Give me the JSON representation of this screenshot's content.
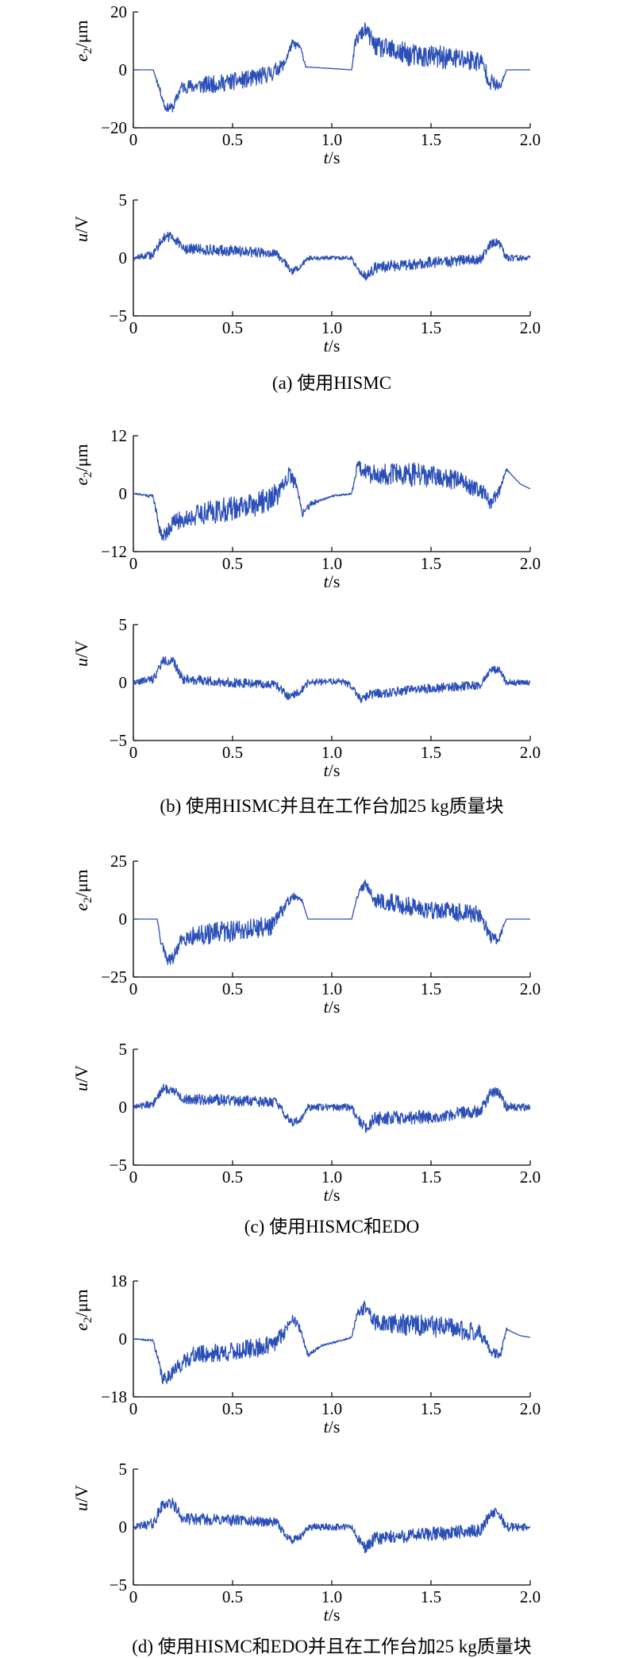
{
  "chart_data": [
    {
      "type": "line",
      "panel": "a",
      "subplot": "top",
      "ylabel": "e2/μm",
      "xlabel": "t/s",
      "xlim": [
        0,
        2.0
      ],
      "ylim": [
        -20,
        20
      ],
      "yticks": [
        "20",
        "0",
        "−20"
      ],
      "xticks": [
        "0",
        "0.5",
        "1.0",
        "1.5",
        "2.0"
      ],
      "color": "#2b4fb8",
      "profile": [
        [
          0,
          0
        ],
        [
          0.1,
          0
        ],
        [
          0.13,
          -6
        ],
        [
          0.16,
          -13
        ],
        [
          0.2,
          -13
        ],
        [
          0.24,
          -6
        ],
        [
          0.4,
          -5
        ],
        [
          0.6,
          -3
        ],
        [
          0.7,
          -1
        ],
        [
          0.76,
          2
        ],
        [
          0.8,
          9
        ],
        [
          0.84,
          8
        ],
        [
          0.87,
          1
        ],
        [
          1.1,
          0
        ],
        [
          1.12,
          10
        ],
        [
          1.17,
          14
        ],
        [
          1.22,
          8
        ],
        [
          1.4,
          5
        ],
        [
          1.6,
          4
        ],
        [
          1.75,
          3
        ],
        [
          1.8,
          -4
        ],
        [
          1.85,
          -6
        ],
        [
          1.88,
          0
        ],
        [
          2.0,
          0
        ]
      ],
      "noise": [
        [
          0,
          0
        ],
        [
          0.1,
          0
        ],
        [
          0.12,
          1
        ],
        [
          0.24,
          2
        ],
        [
          0.35,
          3
        ],
        [
          0.5,
          3
        ],
        [
          0.7,
          3
        ],
        [
          0.75,
          2
        ],
        [
          0.85,
          1
        ],
        [
          0.88,
          0
        ],
        [
          1.1,
          0
        ],
        [
          1.12,
          2
        ],
        [
          1.2,
          3
        ],
        [
          1.3,
          4
        ],
        [
          1.7,
          4
        ],
        [
          1.8,
          3
        ],
        [
          1.86,
          1
        ],
        [
          1.88,
          0
        ],
        [
          2.0,
          0
        ]
      ],
      "seed": 11
    },
    {
      "type": "line",
      "panel": "a",
      "subplot": "bottom",
      "ylabel": "u/V",
      "xlabel": "t/s",
      "xlim": [
        0,
        2.0
      ],
      "ylim": [
        -5,
        5
      ],
      "yticks": [
        "5",
        "0",
        "−5"
      ],
      "xticks": [
        "0",
        "0.5",
        "1.0",
        "1.5",
        "2.0"
      ],
      "color": "#2b4fb8",
      "profile": [
        [
          0,
          0
        ],
        [
          0.1,
          0.3
        ],
        [
          0.15,
          1.8
        ],
        [
          0.2,
          1.8
        ],
        [
          0.25,
          0.8
        ],
        [
          0.5,
          0.6
        ],
        [
          0.72,
          0.4
        ],
        [
          0.76,
          -0.3
        ],
        [
          0.8,
          -1.2
        ],
        [
          0.85,
          -0.6
        ],
        [
          0.88,
          0
        ],
        [
          1.1,
          0
        ],
        [
          1.13,
          -1
        ],
        [
          1.17,
          -1.6
        ],
        [
          1.22,
          -0.8
        ],
        [
          1.5,
          -0.4
        ],
        [
          1.75,
          -0.1
        ],
        [
          1.8,
          1.2
        ],
        [
          1.84,
          1.4
        ],
        [
          1.88,
          0
        ],
        [
          2.0,
          0
        ]
      ],
      "noise": [
        [
          0,
          0.2
        ],
        [
          0.1,
          0.4
        ],
        [
          0.5,
          0.5
        ],
        [
          0.9,
          0.2
        ],
        [
          1.1,
          0.15
        ],
        [
          1.2,
          0.5
        ],
        [
          1.6,
          0.5
        ],
        [
          1.9,
          0.3
        ],
        [
          2.0,
          0.2
        ]
      ],
      "seed": 12
    },
    {
      "type": "line",
      "panel": "b",
      "subplot": "top",
      "ylabel": "e2/μm",
      "xlabel": "t/s",
      "xlim": [
        0,
        2.0
      ],
      "ylim": [
        -12,
        12
      ],
      "yticks": [
        "12",
        "0",
        "−12"
      ],
      "xticks": [
        "0",
        "0.5",
        "1.0",
        "1.5",
        "2.0"
      ],
      "color": "#2b4fb8",
      "profile": [
        [
          0,
          0
        ],
        [
          0.1,
          -0.5
        ],
        [
          0.13,
          -7
        ],
        [
          0.15,
          -9
        ],
        [
          0.2,
          -6
        ],
        [
          0.35,
          -4
        ],
        [
          0.6,
          -2.5
        ],
        [
          0.74,
          0
        ],
        [
          0.78,
          4
        ],
        [
          0.82,
          2
        ],
        [
          0.85,
          -4
        ],
        [
          0.9,
          -2
        ],
        [
          1.0,
          -0.5
        ],
        [
          1.1,
          0
        ],
        [
          1.13,
          6
        ],
        [
          1.2,
          4
        ],
        [
          1.4,
          4
        ],
        [
          1.6,
          3
        ],
        [
          1.75,
          1
        ],
        [
          1.8,
          -2
        ],
        [
          1.85,
          1
        ],
        [
          1.88,
          5
        ],
        [
          1.95,
          2
        ],
        [
          2.0,
          1
        ]
      ],
      "noise": [
        [
          0,
          0
        ],
        [
          0.1,
          0.5
        ],
        [
          0.15,
          1.5
        ],
        [
          0.4,
          2.5
        ],
        [
          0.7,
          2.5
        ],
        [
          0.85,
          1
        ],
        [
          0.95,
          0.2
        ],
        [
          1.1,
          0.2
        ],
        [
          1.15,
          2
        ],
        [
          1.4,
          2.5
        ],
        [
          1.7,
          2
        ],
        [
          1.85,
          1
        ],
        [
          1.9,
          0
        ],
        [
          2.0,
          0
        ]
      ],
      "seed": 21
    },
    {
      "type": "line",
      "panel": "b",
      "subplot": "bottom",
      "ylabel": "u/V",
      "xlabel": "t/s",
      "xlim": [
        0,
        2.0
      ],
      "ylim": [
        -5,
        5
      ],
      "yticks": [
        "5",
        "0",
        "−5"
      ],
      "xticks": [
        "0",
        "0.5",
        "1.0",
        "1.5",
        "2.0"
      ],
      "color": "#2b4fb8",
      "profile": [
        [
          0,
          0
        ],
        [
          0.1,
          0.3
        ],
        [
          0.15,
          1.9
        ],
        [
          0.2,
          1.8
        ],
        [
          0.25,
          0.3
        ],
        [
          0.5,
          0
        ],
        [
          0.72,
          -0.2
        ],
        [
          0.78,
          -1.2
        ],
        [
          0.84,
          -0.8
        ],
        [
          0.88,
          0
        ],
        [
          1.05,
          0.1
        ],
        [
          1.1,
          -0.3
        ],
        [
          1.15,
          -1.5
        ],
        [
          1.2,
          -1
        ],
        [
          1.5,
          -0.5
        ],
        [
          1.75,
          -0.2
        ],
        [
          1.8,
          1.2
        ],
        [
          1.85,
          1
        ],
        [
          1.88,
          0
        ],
        [
          2.0,
          0
        ]
      ],
      "noise": [
        [
          0,
          0.2
        ],
        [
          0.1,
          0.4
        ],
        [
          0.5,
          0.4
        ],
        [
          0.9,
          0.3
        ],
        [
          1.1,
          0.3
        ],
        [
          1.2,
          0.4
        ],
        [
          1.6,
          0.4
        ],
        [
          1.9,
          0.3
        ],
        [
          2.0,
          0.2
        ]
      ],
      "seed": 22
    },
    {
      "type": "line",
      "panel": "c",
      "subplot": "top",
      "ylabel": "e2/μm",
      "xlabel": "t/s",
      "xlim": [
        0,
        2.0
      ],
      "ylim": [
        -25,
        25
      ],
      "yticks": [
        "25",
        "0",
        "−25"
      ],
      "xticks": [
        "0",
        "0.5",
        "1.0",
        "1.5",
        "2.0"
      ],
      "color": "#2b4fb8",
      "profile": [
        [
          0,
          0
        ],
        [
          0.12,
          0
        ],
        [
          0.14,
          -10
        ],
        [
          0.17,
          -18
        ],
        [
          0.2,
          -17
        ],
        [
          0.25,
          -8
        ],
        [
          0.5,
          -5
        ],
        [
          0.7,
          -3
        ],
        [
          0.76,
          5
        ],
        [
          0.8,
          10
        ],
        [
          0.85,
          8
        ],
        [
          0.88,
          0
        ],
        [
          1.1,
          0
        ],
        [
          1.13,
          10
        ],
        [
          1.17,
          16
        ],
        [
          1.22,
          8
        ],
        [
          1.5,
          4
        ],
        [
          1.75,
          2
        ],
        [
          1.8,
          -8
        ],
        [
          1.84,
          -9
        ],
        [
          1.88,
          0
        ],
        [
          2.0,
          0
        ]
      ],
      "noise": [
        [
          0,
          0
        ],
        [
          0.12,
          0
        ],
        [
          0.14,
          2
        ],
        [
          0.3,
          4
        ],
        [
          0.5,
          5
        ],
        [
          0.7,
          4
        ],
        [
          0.8,
          2
        ],
        [
          0.88,
          0
        ],
        [
          1.1,
          0
        ],
        [
          1.15,
          2
        ],
        [
          1.3,
          4
        ],
        [
          1.7,
          4
        ],
        [
          1.85,
          2
        ],
        [
          1.88,
          0
        ],
        [
          2.0,
          0
        ]
      ],
      "seed": 31
    },
    {
      "type": "line",
      "panel": "c",
      "subplot": "bottom",
      "ylabel": "u/V",
      "xlabel": "t/s",
      "xlim": [
        0,
        2.0
      ],
      "ylim": [
        -5,
        5
      ],
      "yticks": [
        "5",
        "0",
        "−5"
      ],
      "xticks": [
        "0",
        "0.5",
        "1.0",
        "1.5",
        "2.0"
      ],
      "color": "#2b4fb8",
      "profile": [
        [
          0,
          0
        ],
        [
          0.1,
          0.3
        ],
        [
          0.15,
          1.6
        ],
        [
          0.2,
          1.5
        ],
        [
          0.25,
          0.7
        ],
        [
          0.5,
          0.6
        ],
        [
          0.72,
          0.4
        ],
        [
          0.76,
          -0.5
        ],
        [
          0.8,
          -1.4
        ],
        [
          0.85,
          -1
        ],
        [
          0.88,
          0
        ],
        [
          1.1,
          0
        ],
        [
          1.13,
          -1
        ],
        [
          1.17,
          -1.8
        ],
        [
          1.22,
          -1
        ],
        [
          1.5,
          -0.8
        ],
        [
          1.75,
          -0.3
        ],
        [
          1.8,
          1.2
        ],
        [
          1.84,
          1.3
        ],
        [
          1.88,
          0
        ],
        [
          2.0,
          0
        ]
      ],
      "noise": [
        [
          0,
          0.2
        ],
        [
          0.1,
          0.4
        ],
        [
          0.5,
          0.5
        ],
        [
          0.9,
          0.3
        ],
        [
          1.1,
          0.3
        ],
        [
          1.2,
          0.6
        ],
        [
          1.6,
          0.6
        ],
        [
          1.9,
          0.4
        ],
        [
          2.0,
          0.3
        ]
      ],
      "seed": 32
    },
    {
      "type": "line",
      "panel": "d",
      "subplot": "top",
      "ylabel": "e2/μm",
      "xlabel": "t/s",
      "xlim": [
        0,
        2.0
      ],
      "ylim": [
        -18,
        18
      ],
      "yticks": [
        "18",
        "0",
        "−18"
      ],
      "xticks": [
        "0",
        "0.5",
        "1.0",
        "1.5",
        "2.0"
      ],
      "color": "#2b4fb8",
      "profile": [
        [
          0,
          0
        ],
        [
          0.1,
          -0.5
        ],
        [
          0.13,
          -8
        ],
        [
          0.15,
          -13
        ],
        [
          0.2,
          -10
        ],
        [
          0.3,
          -5
        ],
        [
          0.5,
          -4
        ],
        [
          0.7,
          -2
        ],
        [
          0.76,
          2
        ],
        [
          0.8,
          7
        ],
        [
          0.84,
          3
        ],
        [
          0.88,
          -5
        ],
        [
          0.95,
          -2
        ],
        [
          1.05,
          -0.5
        ],
        [
          1.1,
          0.5
        ],
        [
          1.13,
          8
        ],
        [
          1.17,
          10
        ],
        [
          1.22,
          5
        ],
        [
          1.5,
          4
        ],
        [
          1.75,
          2
        ],
        [
          1.8,
          -4
        ],
        [
          1.85,
          -5
        ],
        [
          1.88,
          3
        ],
        [
          1.95,
          1
        ],
        [
          2.0,
          0.5
        ]
      ],
      "noise": [
        [
          0,
          0
        ],
        [
          0.1,
          0.5
        ],
        [
          0.15,
          2
        ],
        [
          0.4,
          3
        ],
        [
          0.7,
          3
        ],
        [
          0.85,
          1
        ],
        [
          0.95,
          0.3
        ],
        [
          1.1,
          0.3
        ],
        [
          1.15,
          2
        ],
        [
          1.4,
          3.5
        ],
        [
          1.7,
          3
        ],
        [
          1.86,
          1
        ],
        [
          1.9,
          0
        ],
        [
          2.0,
          0
        ]
      ],
      "seed": 41
    },
    {
      "type": "line",
      "panel": "d",
      "subplot": "bottom",
      "ylabel": "u/V",
      "xlabel": "t/s",
      "xlim": [
        0,
        2.0
      ],
      "ylim": [
        -5,
        5
      ],
      "yticks": [
        "5",
        "0",
        "−5"
      ],
      "xticks": [
        "0",
        "0.5",
        "1.0",
        "1.5",
        "2.0"
      ],
      "color": "#2b4fb8",
      "profile": [
        [
          0,
          0
        ],
        [
          0.1,
          0.3
        ],
        [
          0.15,
          2
        ],
        [
          0.2,
          2
        ],
        [
          0.25,
          0.7
        ],
        [
          0.5,
          0.6
        ],
        [
          0.72,
          0.4
        ],
        [
          0.76,
          -0.5
        ],
        [
          0.8,
          -1.2
        ],
        [
          0.85,
          -0.8
        ],
        [
          0.88,
          0
        ],
        [
          1.1,
          0
        ],
        [
          1.13,
          -1
        ],
        [
          1.17,
          -1.8
        ],
        [
          1.22,
          -1
        ],
        [
          1.5,
          -0.6
        ],
        [
          1.75,
          -0.3
        ],
        [
          1.8,
          1.2
        ],
        [
          1.84,
          1.2
        ],
        [
          1.88,
          0
        ],
        [
          2.0,
          0
        ]
      ],
      "noise": [
        [
          0,
          0.2
        ],
        [
          0.1,
          0.5
        ],
        [
          0.5,
          0.5
        ],
        [
          0.9,
          0.3
        ],
        [
          1.1,
          0.3
        ],
        [
          1.2,
          0.6
        ],
        [
          1.6,
          0.6
        ],
        [
          1.9,
          0.4
        ],
        [
          2.0,
          0.3
        ]
      ],
      "seed": 42
    }
  ],
  "captions": {
    "a": "(a) 使用HISMC",
    "b": "(b) 使用HISMC并且在工作台加25 kg质量块",
    "c": "(c) 使用HISMC和EDO",
    "d": "(d) 使用HISMC和EDO并且在工作台加25 kg质量块"
  }
}
